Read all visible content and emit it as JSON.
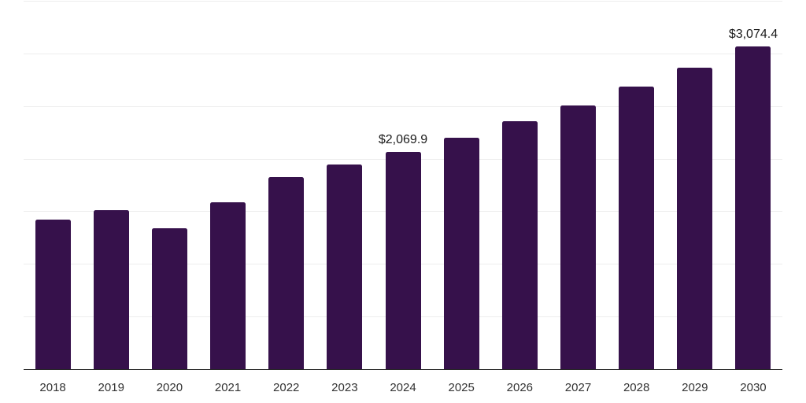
{
  "chart_data": {
    "type": "bar",
    "title": "",
    "xlabel": "",
    "ylabel": "",
    "categories": [
      "2018",
      "2019",
      "2020",
      "2021",
      "2022",
      "2023",
      "2024",
      "2025",
      "2026",
      "2027",
      "2028",
      "2029",
      "2030"
    ],
    "values": [
      1425,
      1515,
      1350,
      1595,
      1835,
      1950,
      2069.9,
      2205,
      2360,
      2515,
      2690,
      2875,
      3074.4
    ],
    "point_labels": {
      "2024": "$2,069.9",
      "2030": "$3,074.4"
    },
    "ylim": [
      0,
      3500
    ],
    "gridline_step": 500,
    "grid": true,
    "y_tick_labels_visible": false,
    "legend": "none",
    "colors": {
      "bar": "#36114b",
      "gridline": "#ededed",
      "axis_line": "#262626",
      "tick_label": "#333333",
      "value_label": "#1b1b1b",
      "background": "#ffffff"
    }
  }
}
